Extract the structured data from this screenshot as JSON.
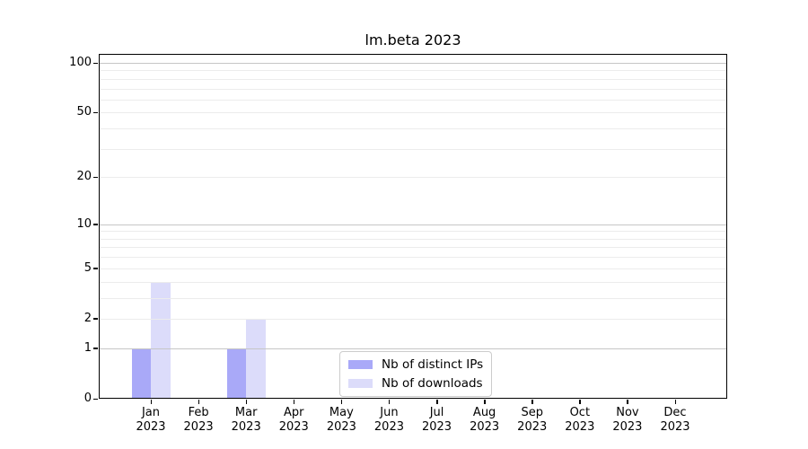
{
  "chart_data": {
    "type": "bar",
    "title": "lm.beta 2023",
    "categories": [
      "Jan",
      "Feb",
      "Mar",
      "Apr",
      "May",
      "Jun",
      "Jul",
      "Aug",
      "Sep",
      "Oct",
      "Nov",
      "Dec"
    ],
    "category_year": "2023",
    "series": [
      {
        "name": "Nb of distinct IPs",
        "color": "#a9a9f8",
        "values": [
          1,
          0,
          1,
          0,
          0,
          0,
          0,
          0,
          0,
          0,
          0,
          0
        ]
      },
      {
        "name": "Nb of downloads",
        "color": "#dcdcfa",
        "values": [
          4,
          0,
          2,
          0,
          0,
          0,
          0,
          0,
          0,
          0,
          0,
          0
        ]
      }
    ],
    "xlabel": "",
    "ylabel": "",
    "yscale": "log1p",
    "ylim": [
      0,
      100
    ],
    "y_ticks": [
      0,
      1,
      2,
      5,
      10,
      20,
      50,
      100
    ],
    "grid_major": [
      1,
      10,
      100
    ],
    "grid_minor": [
      2,
      3,
      4,
      5,
      6,
      7,
      8,
      9,
      20,
      30,
      40,
      50,
      60,
      70,
      80,
      90
    ],
    "grid_major_color": "#c6c6c6",
    "grid_minor_color": "#ececec",
    "legend_position": "lower center",
    "grid": true
  }
}
